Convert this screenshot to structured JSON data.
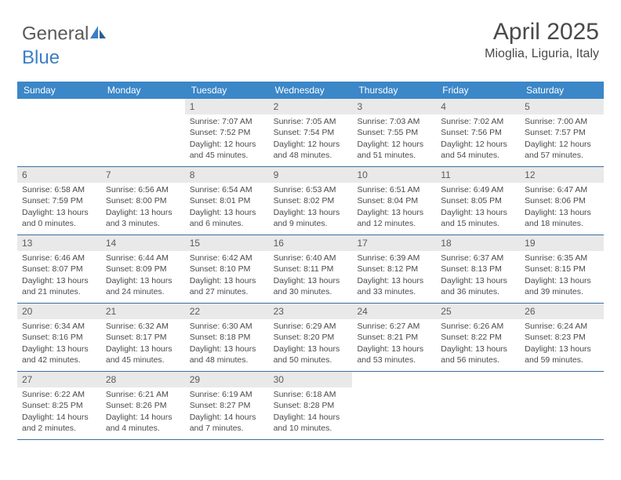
{
  "logo": {
    "text1": "General",
    "text2": "Blue"
  },
  "title": "April 2025",
  "location": "Mioglia, Liguria, Italy",
  "colors": {
    "header_bg": "#3b87c8",
    "header_text": "#ffffff",
    "daynum_bg": "#e9e9e9",
    "text": "#4a4a4a",
    "rule": "#3b6fa0",
    "logo_blue": "#3b7fc4"
  },
  "days_of_week": [
    "Sunday",
    "Monday",
    "Tuesday",
    "Wednesday",
    "Thursday",
    "Friday",
    "Saturday"
  ],
  "weeks": [
    [
      {
        "n": "",
        "empty": true
      },
      {
        "n": "",
        "empty": true
      },
      {
        "n": "1",
        "sr": "Sunrise: 7:07 AM",
        "ss": "Sunset: 7:52 PM",
        "d1": "Daylight: 12 hours",
        "d2": "and 45 minutes."
      },
      {
        "n": "2",
        "sr": "Sunrise: 7:05 AM",
        "ss": "Sunset: 7:54 PM",
        "d1": "Daylight: 12 hours",
        "d2": "and 48 minutes."
      },
      {
        "n": "3",
        "sr": "Sunrise: 7:03 AM",
        "ss": "Sunset: 7:55 PM",
        "d1": "Daylight: 12 hours",
        "d2": "and 51 minutes."
      },
      {
        "n": "4",
        "sr": "Sunrise: 7:02 AM",
        "ss": "Sunset: 7:56 PM",
        "d1": "Daylight: 12 hours",
        "d2": "and 54 minutes."
      },
      {
        "n": "5",
        "sr": "Sunrise: 7:00 AM",
        "ss": "Sunset: 7:57 PM",
        "d1": "Daylight: 12 hours",
        "d2": "and 57 minutes."
      }
    ],
    [
      {
        "n": "6",
        "sr": "Sunrise: 6:58 AM",
        "ss": "Sunset: 7:59 PM",
        "d1": "Daylight: 13 hours",
        "d2": "and 0 minutes."
      },
      {
        "n": "7",
        "sr": "Sunrise: 6:56 AM",
        "ss": "Sunset: 8:00 PM",
        "d1": "Daylight: 13 hours",
        "d2": "and 3 minutes."
      },
      {
        "n": "8",
        "sr": "Sunrise: 6:54 AM",
        "ss": "Sunset: 8:01 PM",
        "d1": "Daylight: 13 hours",
        "d2": "and 6 minutes."
      },
      {
        "n": "9",
        "sr": "Sunrise: 6:53 AM",
        "ss": "Sunset: 8:02 PM",
        "d1": "Daylight: 13 hours",
        "d2": "and 9 minutes."
      },
      {
        "n": "10",
        "sr": "Sunrise: 6:51 AM",
        "ss": "Sunset: 8:04 PM",
        "d1": "Daylight: 13 hours",
        "d2": "and 12 minutes."
      },
      {
        "n": "11",
        "sr": "Sunrise: 6:49 AM",
        "ss": "Sunset: 8:05 PM",
        "d1": "Daylight: 13 hours",
        "d2": "and 15 minutes."
      },
      {
        "n": "12",
        "sr": "Sunrise: 6:47 AM",
        "ss": "Sunset: 8:06 PM",
        "d1": "Daylight: 13 hours",
        "d2": "and 18 minutes."
      }
    ],
    [
      {
        "n": "13",
        "sr": "Sunrise: 6:46 AM",
        "ss": "Sunset: 8:07 PM",
        "d1": "Daylight: 13 hours",
        "d2": "and 21 minutes."
      },
      {
        "n": "14",
        "sr": "Sunrise: 6:44 AM",
        "ss": "Sunset: 8:09 PM",
        "d1": "Daylight: 13 hours",
        "d2": "and 24 minutes."
      },
      {
        "n": "15",
        "sr": "Sunrise: 6:42 AM",
        "ss": "Sunset: 8:10 PM",
        "d1": "Daylight: 13 hours",
        "d2": "and 27 minutes."
      },
      {
        "n": "16",
        "sr": "Sunrise: 6:40 AM",
        "ss": "Sunset: 8:11 PM",
        "d1": "Daylight: 13 hours",
        "d2": "and 30 minutes."
      },
      {
        "n": "17",
        "sr": "Sunrise: 6:39 AM",
        "ss": "Sunset: 8:12 PM",
        "d1": "Daylight: 13 hours",
        "d2": "and 33 minutes."
      },
      {
        "n": "18",
        "sr": "Sunrise: 6:37 AM",
        "ss": "Sunset: 8:13 PM",
        "d1": "Daylight: 13 hours",
        "d2": "and 36 minutes."
      },
      {
        "n": "19",
        "sr": "Sunrise: 6:35 AM",
        "ss": "Sunset: 8:15 PM",
        "d1": "Daylight: 13 hours",
        "d2": "and 39 minutes."
      }
    ],
    [
      {
        "n": "20",
        "sr": "Sunrise: 6:34 AM",
        "ss": "Sunset: 8:16 PM",
        "d1": "Daylight: 13 hours",
        "d2": "and 42 minutes."
      },
      {
        "n": "21",
        "sr": "Sunrise: 6:32 AM",
        "ss": "Sunset: 8:17 PM",
        "d1": "Daylight: 13 hours",
        "d2": "and 45 minutes."
      },
      {
        "n": "22",
        "sr": "Sunrise: 6:30 AM",
        "ss": "Sunset: 8:18 PM",
        "d1": "Daylight: 13 hours",
        "d2": "and 48 minutes."
      },
      {
        "n": "23",
        "sr": "Sunrise: 6:29 AM",
        "ss": "Sunset: 8:20 PM",
        "d1": "Daylight: 13 hours",
        "d2": "and 50 minutes."
      },
      {
        "n": "24",
        "sr": "Sunrise: 6:27 AM",
        "ss": "Sunset: 8:21 PM",
        "d1": "Daylight: 13 hours",
        "d2": "and 53 minutes."
      },
      {
        "n": "25",
        "sr": "Sunrise: 6:26 AM",
        "ss": "Sunset: 8:22 PM",
        "d1": "Daylight: 13 hours",
        "d2": "and 56 minutes."
      },
      {
        "n": "26",
        "sr": "Sunrise: 6:24 AM",
        "ss": "Sunset: 8:23 PM",
        "d1": "Daylight: 13 hours",
        "d2": "and 59 minutes."
      }
    ],
    [
      {
        "n": "27",
        "sr": "Sunrise: 6:22 AM",
        "ss": "Sunset: 8:25 PM",
        "d1": "Daylight: 14 hours",
        "d2": "and 2 minutes."
      },
      {
        "n": "28",
        "sr": "Sunrise: 6:21 AM",
        "ss": "Sunset: 8:26 PM",
        "d1": "Daylight: 14 hours",
        "d2": "and 4 minutes."
      },
      {
        "n": "29",
        "sr": "Sunrise: 6:19 AM",
        "ss": "Sunset: 8:27 PM",
        "d1": "Daylight: 14 hours",
        "d2": "and 7 minutes."
      },
      {
        "n": "30",
        "sr": "Sunrise: 6:18 AM",
        "ss": "Sunset: 8:28 PM",
        "d1": "Daylight: 14 hours",
        "d2": "and 10 minutes."
      },
      {
        "n": "",
        "empty": true
      },
      {
        "n": "",
        "empty": true
      },
      {
        "n": "",
        "empty": true
      }
    ]
  ]
}
